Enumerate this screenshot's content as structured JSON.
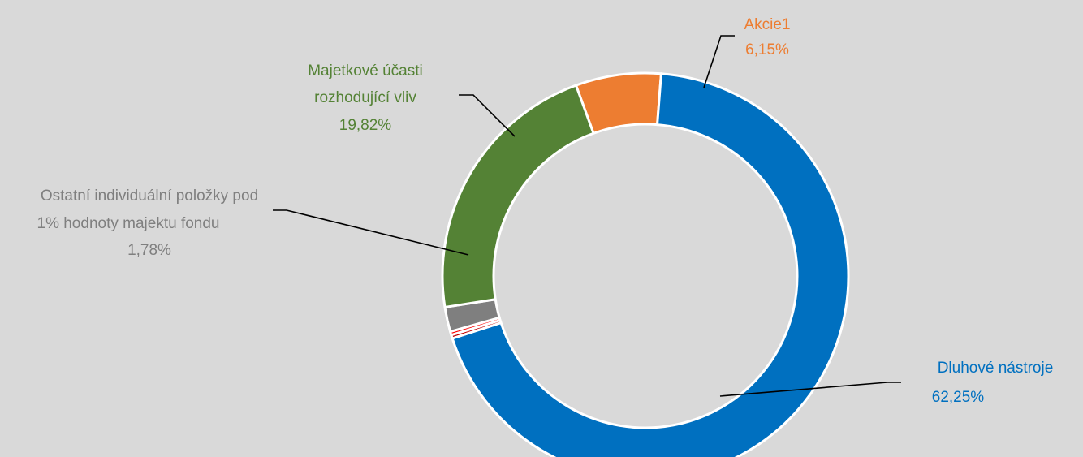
{
  "chart_data": {
    "type": "pie",
    "donut": true,
    "title": "",
    "legend": "none",
    "slices": [
      {
        "name": "Akcie1",
        "value": 6.15,
        "label_value": "6,15%",
        "color": "#ed7d31"
      },
      {
        "name": "Dluhové nástroje",
        "value": 62.25,
        "label_value": "62,25%",
        "color": "#0070c0"
      },
      {
        "name": "",
        "value": 0.25,
        "label_value": "",
        "color": "#c00000"
      },
      {
        "name": "",
        "value": 0.25,
        "label_value": "",
        "color": "#ff0000"
      },
      {
        "name": "Ostatní individuální položky pod 1% hodnoty majektu fondu",
        "value": 1.78,
        "label_value": "1,78%",
        "color": "#7f7f7f"
      },
      {
        "name": "Majetkové účasti rozhodující vliv",
        "value": 19.82,
        "label_value": "19,82%",
        "color": "#548235"
      }
    ]
  },
  "labels": {
    "akcie": {
      "line1": "Akcie1",
      "value": "6,15%"
    },
    "dluhove": {
      "line1": "Dluhové nástroje",
      "value": "62,25%"
    },
    "ostatni": {
      "line1": "Ostatní individuální položky pod",
      "line2": "1% hodnoty majektu fondu",
      "value": "1,78%"
    },
    "majetkove": {
      "line1": "Majetkové účasti",
      "line2": "rozhodující vliv",
      "value": "19,82%"
    }
  },
  "colors": {
    "background": "#d9d9d9",
    "leader_line": "#000000",
    "separator": "#ffffff"
  }
}
